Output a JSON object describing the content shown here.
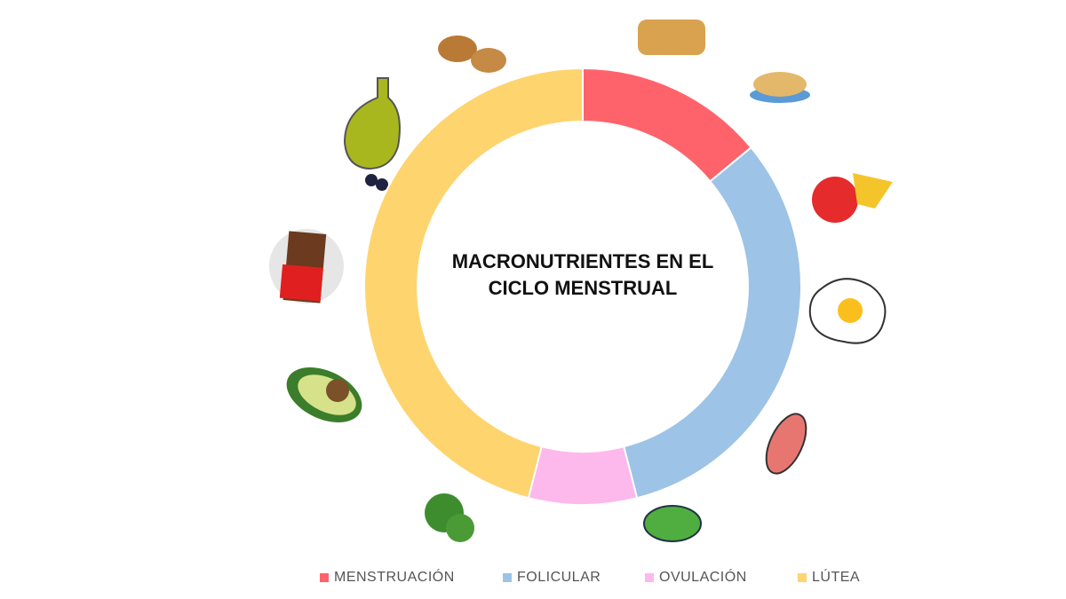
{
  "chart_data": {
    "type": "donut",
    "title": [
      "MACRONUTRIENTES EN EL",
      "CICLO MENSTRUAL"
    ],
    "categories": [
      "MENSTRUACIÓN",
      "FOLICULAR",
      "OVULACIÓN",
      "LÚTEA"
    ],
    "values": [
      14,
      32,
      8,
      46
    ],
    "colors": [
      "#fe636c",
      "#9dc3e6",
      "#fdb8ec",
      "#fed46e"
    ],
    "legend": "bottom"
  }
}
